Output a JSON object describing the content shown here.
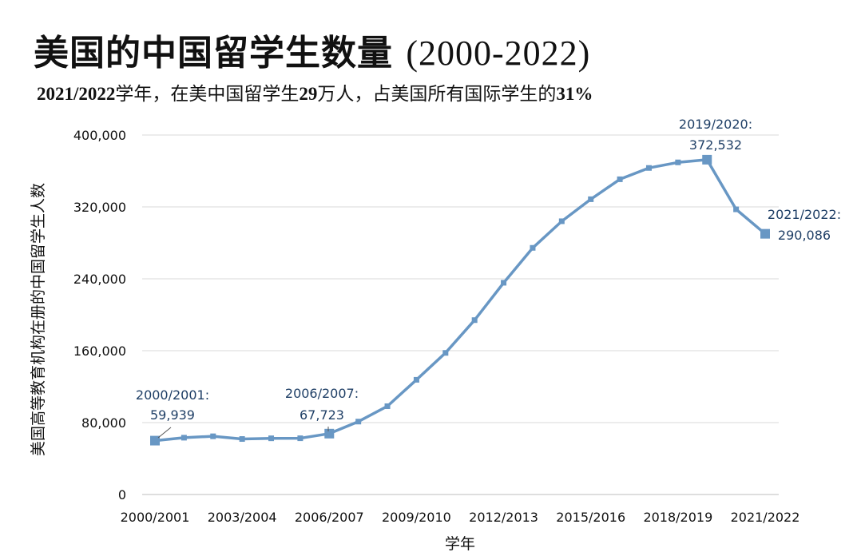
{
  "title": {
    "main": "美国的中国留学生数量 ",
    "years": "(2000-2022)"
  },
  "subtitle": {
    "p1": "2021/2022",
    "p2": "学年，在美中国留学生",
    "p3": "29",
    "p4": "万人，占美国所有国际学生的",
    "p5": "31%"
  },
  "chart_data": {
    "type": "line",
    "xlabel": "学年",
    "ylabel": "美国高等教育机构在册的中国留学生人数",
    "ylim": [
      0,
      400000
    ],
    "yticks": [
      0,
      80000,
      160000,
      240000,
      320000,
      400000
    ],
    "ytick_labels": [
      "0",
      "80,000",
      "160,000",
      "240,000",
      "320,000",
      "400,000"
    ],
    "grid": true,
    "legend": "none",
    "color": "#6897c4",
    "categories": [
      "2000/2001",
      "2001/2002",
      "2002/2003",
      "2003/2004",
      "2004/2005",
      "2005/2006",
      "2006/2007",
      "2007/2008",
      "2008/2009",
      "2009/2010",
      "2010/2011",
      "2011/2012",
      "2012/2013",
      "2013/2014",
      "2014/2015",
      "2015/2016",
      "2016/2017",
      "2017/2018",
      "2018/2019",
      "2019/2020",
      "2020/2021",
      "2021/2022"
    ],
    "xtick_labels": [
      "2000/2001",
      "2003/2004",
      "2006/2007",
      "2009/2010",
      "2012/2013",
      "2015/2016",
      "2018/2019",
      "2021/2022"
    ],
    "values": [
      59939,
      63211,
      64757,
      61765,
      62523,
      62582,
      67723,
      81127,
      98235,
      127628,
      157558,
      194029,
      235597,
      274439,
      304040,
      328547,
      350755,
      363341,
      369548,
      372532,
      317299,
      290086
    ],
    "annotations": [
      {
        "index": 0,
        "lines": [
          "2000/2001:",
          "59,939"
        ]
      },
      {
        "index": 6,
        "lines": [
          "2006/2007:",
          "67,723"
        ]
      },
      {
        "index": 19,
        "lines": [
          "2019/2020:",
          "372,532"
        ]
      },
      {
        "index": 21,
        "lines": [
          "2021/2022:",
          "290,086"
        ]
      }
    ]
  }
}
